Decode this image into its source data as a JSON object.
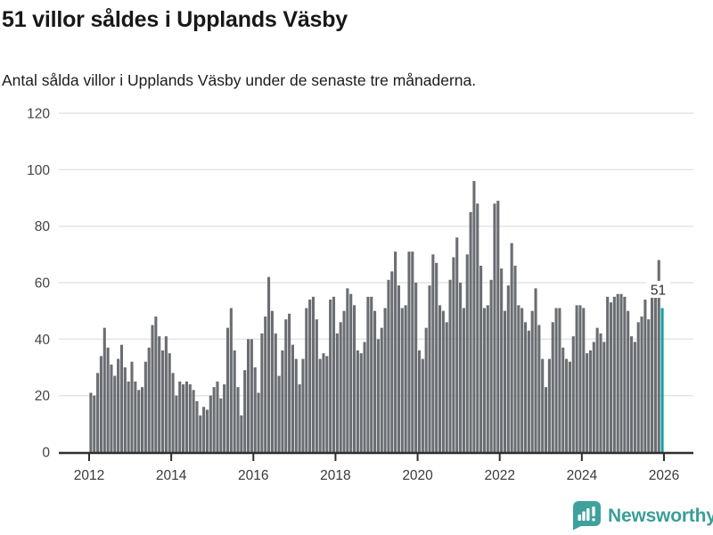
{
  "header": {
    "title": "51 villor såldes i Upplands Väsby",
    "subtitle": "Antal sålda villor i Upplands Väsby under de senaste tre månaderna."
  },
  "chart_data": {
    "type": "bar",
    "title": "51 villor såldes i Upplands Väsby",
    "subtitle": "Antal sålda villor i Upplands Väsby under de senaste tre månaderna.",
    "x_start": "2012-01",
    "x_end": "2025-12",
    "x_tick_labels": [
      "2012",
      "2014",
      "2016",
      "2018",
      "2020",
      "2022",
      "2024",
      "2026"
    ],
    "y_ticks": [
      0,
      20,
      40,
      60,
      80,
      100,
      120
    ],
    "ylim": [
      0,
      120
    ],
    "grid": true,
    "legend": "none",
    "bar_color": "#6a6d71",
    "highlight_color": "#17a2a2",
    "highlight_last": true,
    "last_value_label": "51",
    "values": [
      21,
      20,
      28,
      34,
      44,
      37,
      31,
      27,
      33,
      38,
      30,
      25,
      32,
      25,
      22,
      23,
      32,
      37,
      45,
      48,
      41,
      36,
      41,
      35,
      28,
      20,
      25,
      24,
      25,
      24,
      22,
      18,
      13,
      16,
      15,
      20,
      23,
      25,
      19,
      24,
      44,
      51,
      36,
      23,
      13,
      29,
      40,
      40,
      30,
      21,
      42,
      48,
      62,
      50,
      42,
      27,
      36,
      47,
      49,
      38,
      33,
      24,
      33,
      51,
      54,
      55,
      47,
      33,
      35,
      34,
      54,
      55,
      42,
      46,
      50,
      58,
      56,
      52,
      36,
      35,
      39,
      55,
      55,
      50,
      40,
      44,
      51,
      61,
      64,
      71,
      59,
      51,
      52,
      71,
      71,
      60,
      36,
      33,
      44,
      59,
      70,
      67,
      52,
      50,
      46,
      61,
      69,
      76,
      60,
      51,
      70,
      85,
      96,
      88,
      66,
      51,
      52,
      61,
      88,
      89,
      65,
      50,
      59,
      74,
      66,
      52,
      51,
      46,
      43,
      50,
      58,
      45,
      33,
      23,
      33,
      46,
      51,
      51,
      37,
      33,
      32,
      41,
      52,
      52,
      51,
      35,
      36,
      39,
      44,
      42,
      39,
      55,
      53,
      55,
      56,
      56,
      55,
      50,
      41,
      39,
      46,
      48,
      54,
      47,
      56,
      57,
      68,
      51
    ]
  },
  "footer": {
    "brand": "Newsworthy",
    "logo_icon": "bar-chart-speech-bubble-icon",
    "brand_color": "#3a9e99"
  }
}
